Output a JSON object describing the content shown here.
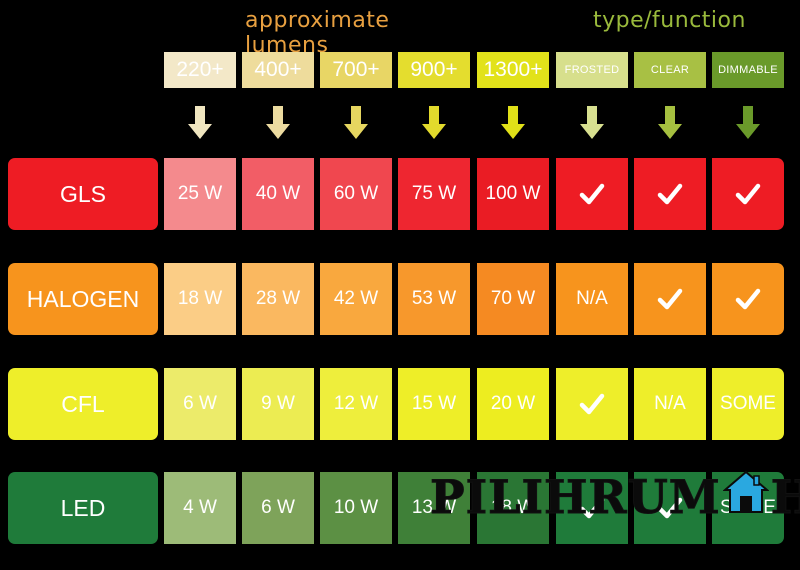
{
  "colors": {
    "lumens_title": "#e8a040",
    "type_title": "#9aba3c",
    "background": "#000000"
  },
  "chart_data": {
    "type": "table",
    "group_titles": {
      "lumens": "approximate lumens",
      "type": "type/function"
    },
    "columns": [
      {
        "label": "220+",
        "group": "lumens",
        "color": "#f3e8c8",
        "arrow_color": "#f0e6c0"
      },
      {
        "label": "400+",
        "group": "lumens",
        "color": "#eedc9c",
        "arrow_color": "#ecdba0"
      },
      {
        "label": "700+",
        "group": "lumens",
        "color": "#e8d665",
        "arrow_color": "#e6d660"
      },
      {
        "label": "900+",
        "group": "lumens",
        "color": "#e4dd2e",
        "arrow_color": "#e2da2c"
      },
      {
        "label": "1300+",
        "group": "lumens",
        "color": "#e2e21a",
        "arrow_color": "#e0e018"
      },
      {
        "label": "FROSTED",
        "group": "type",
        "color": "#d7df8c",
        "arrow_color": "#d8e090"
      },
      {
        "label": "CLEAR",
        "group": "type",
        "color": "#a8c044",
        "arrow_color": "#a6c040"
      },
      {
        "label": "DIMMABLE",
        "group": "type",
        "color": "#6a9a2a",
        "arrow_color": "#6a9a2a"
      }
    ],
    "rows": [
      {
        "label": "GLS",
        "label_color": "#ee1c24",
        "cells": [
          "25 W",
          "40 W",
          "60 W",
          "75 W",
          "100 W",
          "✓",
          "✓",
          "✓"
        ],
        "cell_colors": [
          "#f48a8d",
          "#f25d66",
          "#f0474f",
          "#ee2630",
          "#ea1c24",
          "#ee1c24",
          "#ee1c24",
          "#ee1c24"
        ]
      },
      {
        "label": "HALOGEN",
        "label_color": "#f7941d",
        "cells": [
          "18 W",
          "28 W",
          "42 W",
          "53 W",
          "70 W",
          "N/A",
          "✓",
          "✓"
        ],
        "cell_colors": [
          "#fbcd86",
          "#fab860",
          "#f9a83e",
          "#f7982c",
          "#f58a22",
          "#f7941d",
          "#f7941d",
          "#f7941d"
        ]
      },
      {
        "label": "CFL",
        "label_color": "#eeee2a",
        "cells": [
          "6 W",
          "9 W",
          "12 W",
          "15 W",
          "20 W",
          "✓",
          "N/A",
          "SOME"
        ],
        "cell_colors": [
          "#eceb6a",
          "#ecec52",
          "#eeee3c",
          "#eeee28",
          "#eded20",
          "#eeee2a",
          "#eeee2a",
          "#eeee2a"
        ]
      },
      {
        "label": "LED",
        "label_color": "#1f7b3a",
        "cells": [
          "4 W",
          "6 W",
          "10 W",
          "13 W",
          "18 W",
          "✓",
          "✓",
          "SOME"
        ],
        "cell_colors": [
          "#9dbb78",
          "#7ea35a",
          "#5c9044",
          "#3f8038",
          "#2a7634",
          "#1f7b3a",
          "#1f7b3a",
          "#1f7b3a"
        ]
      }
    ]
  },
  "watermark": {
    "text_left": "PILIHRUM",
    "text_right": "H"
  }
}
